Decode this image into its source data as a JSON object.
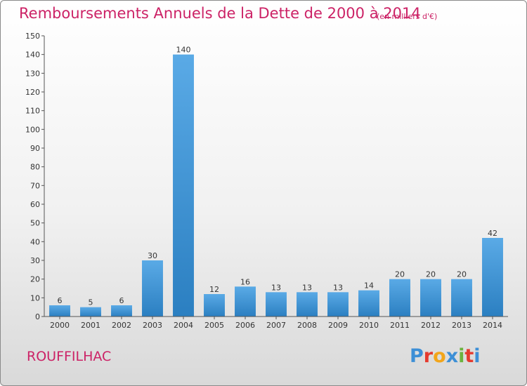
{
  "header": {
    "title": "Remboursements Annuels de la Dette de 2000 à 2014",
    "subtitle": "(en milliers d'€)"
  },
  "footer": {
    "place": "ROUFFILHAC",
    "logo": {
      "text": "Proxiti",
      "letters": [
        "P",
        "r",
        "o",
        "x",
        "i",
        "t",
        "i"
      ],
      "colors": [
        "#3d8fd6",
        "#e53b2f",
        "#f2a51a",
        "#3d8fd6",
        "#6cb33f",
        "#e53b2f",
        "#3d8fd6"
      ]
    }
  },
  "chart_data": {
    "type": "bar",
    "categories": [
      "2000",
      "2001",
      "2002",
      "2003",
      "2004",
      "2005",
      "2006",
      "2007",
      "2008",
      "2009",
      "2010",
      "2011",
      "2012",
      "2013",
      "2014"
    ],
    "values": [
      6,
      5,
      6,
      30,
      140,
      12,
      16,
      13,
      13,
      13,
      14,
      20,
      20,
      20,
      42
    ],
    "ylim": [
      0,
      150
    ],
    "yticks": [
      0,
      10,
      20,
      30,
      40,
      50,
      60,
      70,
      80,
      90,
      100,
      110,
      120,
      130,
      140,
      150
    ],
    "title": "Remboursements Annuels de la Dette de 2000 à 2014",
    "grid": false,
    "colors": {
      "bar_light": "#5aaae6",
      "bar_dark": "#2b7fc1",
      "axis": "#555555"
    }
  }
}
